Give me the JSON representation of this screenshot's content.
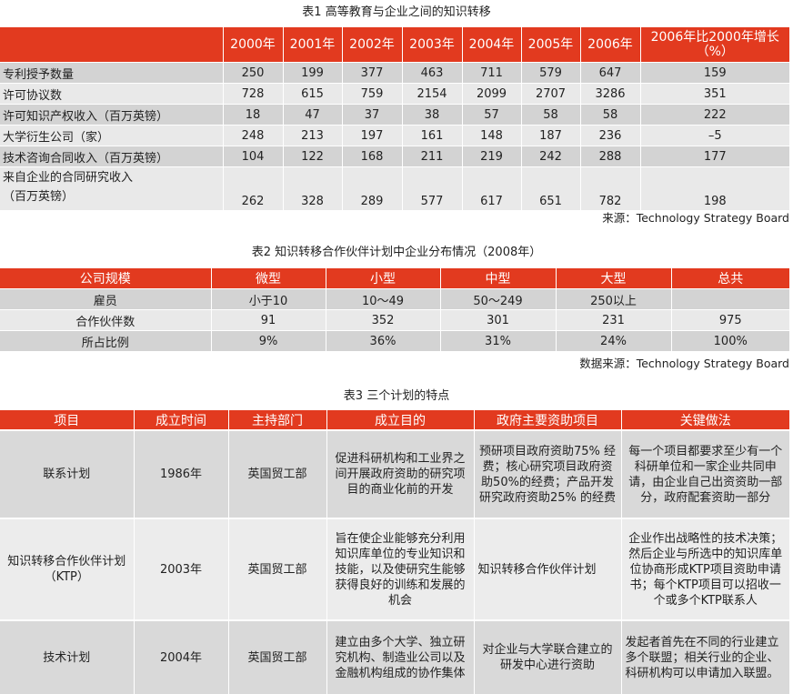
{
  "table1": {
    "caption": "表1  高等教育与企业之间的知识转移",
    "headers": [
      "2000年",
      "2001年",
      "2002年",
      "2003年",
      "2004年",
      "2005年",
      "2006年",
      "2006年比2000年增长（%）"
    ],
    "rows": [
      {
        "label": "专利授予数量",
        "values": [
          "250",
          "199",
          "377",
          "463",
          "711",
          "579",
          "647",
          "159"
        ]
      },
      {
        "label": "许可协议数",
        "values": [
          "728",
          "615",
          "759",
          "2154",
          "2099",
          "2707",
          "3286",
          "351"
        ]
      },
      {
        "label": "许可知识产权收入（百万英镑）",
        "values": [
          "18",
          "47",
          "37",
          "38",
          "57",
          "58",
          "58",
          "222"
        ]
      },
      {
        "label": "大学衍生公司（家）",
        "values": [
          "248",
          "213",
          "197",
          "161",
          "148",
          "187",
          "236",
          "–5"
        ]
      },
      {
        "label": "技术咨询合同收入（百万英镑）",
        "values": [
          "104",
          "122",
          "168",
          "211",
          "219",
          "242",
          "288",
          "177"
        ]
      },
      {
        "label_line1": "来自企业的合同研究收入",
        "label_line2": "（百万英镑）",
        "values": [
          "262",
          "328",
          "289",
          "577",
          "617",
          "651",
          "782",
          "198"
        ]
      }
    ],
    "source": "来源：Technology Strategy Board"
  },
  "table2": {
    "caption": "表2   知识转移合作伙伴计划中企业分布情况（2008年）",
    "headers": [
      "公司规模",
      "微型",
      "小型",
      "中型",
      "大型",
      "总共"
    ],
    "rows": [
      {
        "label": "雇员",
        "values": [
          "小于10",
          "10～49",
          "50～249",
          "250以上",
          ""
        ]
      },
      {
        "label": "合作伙伴数",
        "values": [
          "91",
          "352",
          "301",
          "231",
          "975"
        ]
      },
      {
        "label": "所占比例",
        "values": [
          "9%",
          "36%",
          "31%",
          "24%",
          "100%"
        ]
      }
    ],
    "source": "数据来源：Technology Strategy Board"
  },
  "table3": {
    "caption": "表3    三个计划的特点",
    "headers": [
      "项目",
      "成立时间",
      "主持部门",
      "成立目的",
      "政府主要资助项目",
      "关键做法"
    ],
    "rows": [
      {
        "name": "联系计划",
        "year": "1986年",
        "dept": "英国贸工部",
        "purpose": "促进科研机构和工业界之间开展政府资助的研究项目的商业化前的开发",
        "funding": "预研项目政府资助75% 经费；核心研究项目政府资助50%的经费；产品开发研究政府资助25% 的经费",
        "practice": "每一个项目都要求至少有一个科研单位和一家企业共同申请，由企业自己出资资助一部分，政府配套资助一部分"
      },
      {
        "name": "知识转移合作伙伴计划（KTP）",
        "year": "2003年",
        "dept": "英国贸工部",
        "purpose": "旨在使企业能够充分利用知识库单位的专业知识和技能，以及使研究生能够获得良好的训练和发展的机会",
        "funding": "知识转移合作伙伴计划",
        "practice": "企业作出战略性的技术决策；然后企业与所选中的知识库单位协商形成KTP项目资助申请书；每个KTP项目可以招收一个或多个KTP联系人"
      },
      {
        "name": "技术计划",
        "year": "2004年",
        "dept": "英国贸工部",
        "purpose": "建立由多个大学、独立研究机构、制造业公司以及金融机构组成的协作集体",
        "funding": "对企业与大学联合建立的研发中心进行资助",
        "practice": "发起者首先在不同的行业建立多个联盟；相关行业的企业、科研机构可以申请加入联盟。"
      }
    ]
  },
  "colors": {
    "header_red": "#e23a1f",
    "row_dark": "#d3d3d3",
    "row_light": "#e9e9e9"
  }
}
